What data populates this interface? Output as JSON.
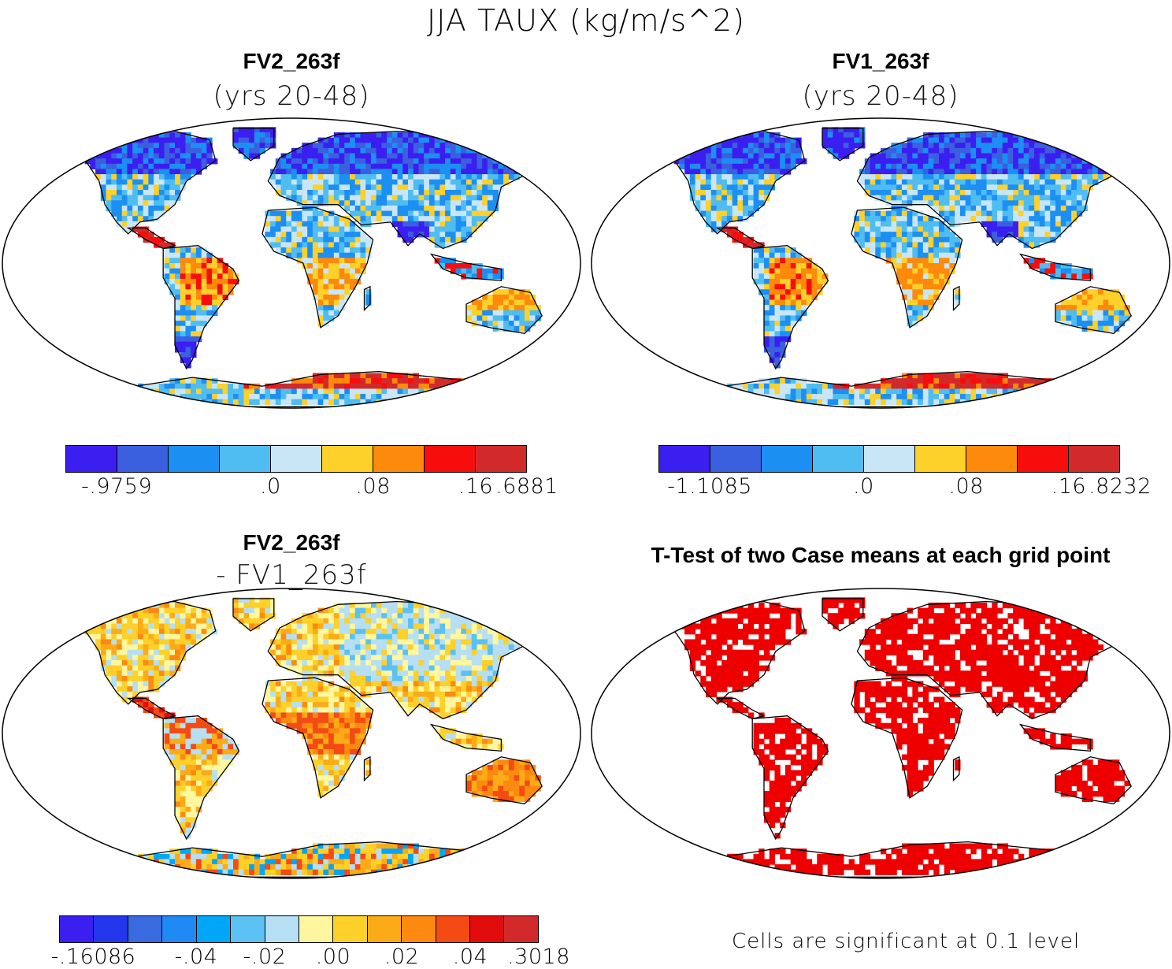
{
  "main_title": "JJA TAUX (kg/m/s^2)",
  "panels": {
    "top_left": {
      "title": "FV2_263f",
      "subtitle": "(yrs 20-48)"
    },
    "top_right": {
      "title": "FV1_263f",
      "subtitle": "(yrs 20-48)"
    },
    "bottom_left": {
      "title": "FV2_263f",
      "subtitle": "- FV1_263f"
    },
    "bottom_right": {
      "title": "T-Test of two Case means at each grid point",
      "footnote": "Cells are significant at 0.1 level"
    }
  },
  "colors": {
    "land_cbar": [
      "#3b1ef0",
      "#3a5fdf",
      "#1c8ff2",
      "#4fbdf1",
      "#c8e6f6",
      "#fdd02a",
      "#fd8a0b",
      "#f80d0d",
      "#d22a2a"
    ],
    "diff_cbar": [
      "#3b1ef0",
      "#2436ec",
      "#3a6ae0",
      "#1f89f4",
      "#00a6f7",
      "#5bc1f3",
      "#b6dff3",
      "#fff6a0",
      "#fdd02a",
      "#fbab18",
      "#fc8a10",
      "#f44a14",
      "#e30c0c",
      "#d22a2a"
    ],
    "significant": "#ee0000",
    "ocean": "#ffffff",
    "coast": "#000000"
  },
  "colorbars": {
    "top_left": {
      "ticks": [
        "-.9759",
        ".0",
        ".08",
        ".16",
        ".6881"
      ],
      "tick_cells": [
        1,
        4,
        6,
        8,
        9
      ]
    },
    "top_right": {
      "ticks": [
        "-1.1085",
        ".0",
        ".08",
        ".16",
        ".8232"
      ],
      "tick_cells": [
        1,
        4,
        6,
        8,
        9
      ]
    },
    "bottom_left": {
      "ticks": [
        "-.16086",
        "-.04",
        "-.02",
        ".00",
        ".02",
        ".04",
        ".3018"
      ],
      "tick_cells": [
        1,
        4,
        6,
        8,
        10,
        12,
        14
      ]
    }
  },
  "chart_data": [
    {
      "type": "heatmap",
      "title": "FV2_263f (yrs 20-48)",
      "variable": "JJA TAUX",
      "units": "kg/m/s^2",
      "projection": "global map",
      "levels": [
        -0.9759,
        -0.04,
        0.0,
        0.04,
        0.08,
        0.12,
        0.16,
        0.4,
        0.6881
      ],
      "level_labels": [
        "-.9759",
        ".0",
        ".08",
        ".16",
        ".6881"
      ]
    },
    {
      "type": "heatmap",
      "title": "FV1_263f (yrs 20-48)",
      "variable": "JJA TAUX",
      "units": "kg/m/s^2",
      "projection": "global map",
      "levels": [
        -1.1085,
        -0.04,
        0.0,
        0.04,
        0.08,
        0.12,
        0.16,
        0.4,
        0.8232
      ],
      "level_labels": [
        "-1.1085",
        ".0",
        ".08",
        ".16",
        ".8232"
      ]
    },
    {
      "type": "heatmap",
      "title": "FV2_263f - FV1_263f",
      "variable": "JJA TAUX difference",
      "units": "kg/m/s^2",
      "projection": "global map",
      "levels": [
        -0.16086,
        -0.06,
        -0.05,
        -0.04,
        -0.03,
        -0.02,
        -0.01,
        0.0,
        0.01,
        0.02,
        0.03,
        0.04,
        0.06,
        0.3018
      ],
      "level_labels": [
        "-.16086",
        "-.04",
        "-.02",
        ".00",
        ".02",
        ".04",
        ".3018"
      ]
    },
    {
      "type": "heatmap",
      "title": "T-Test of two Case means at each grid point",
      "significance_level": 0.1,
      "legend": "Cells are significant at 0.1 level"
    }
  ]
}
